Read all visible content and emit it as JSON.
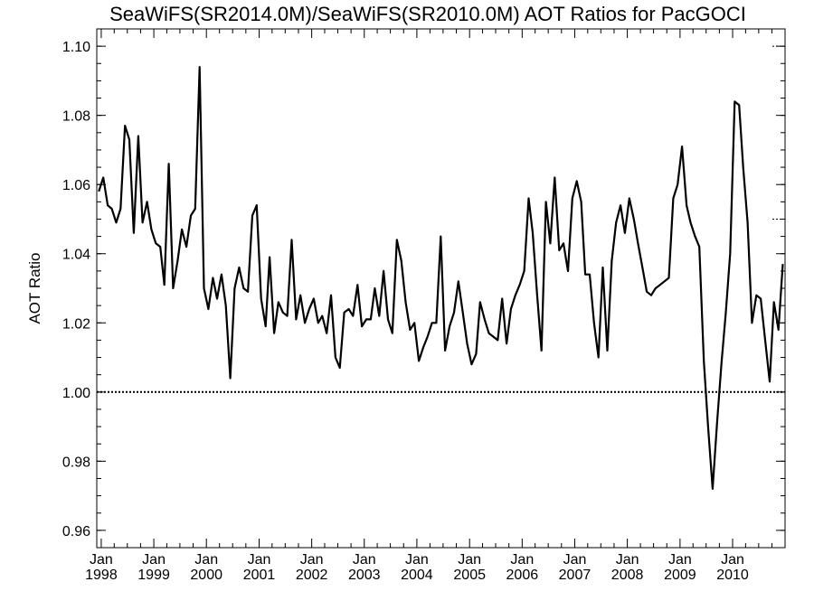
{
  "chart_data": {
    "type": "line",
    "title": "SeaWiFS(SR2014.0M)/SeaWiFS(SR2010.0M)  AOT Ratios for PacGOCI",
    "xlabel": "",
    "ylabel": "AOT Ratio",
    "ylim": [
      0.955,
      1.105
    ],
    "yticks": [
      "0.96",
      "0.98",
      "1.00",
      "1.02",
      "1.04",
      "1.06",
      "1.08",
      "1.10"
    ],
    "xlim": [
      "1997-12-01",
      "2010-12-31"
    ],
    "xticks": [
      {
        "month": "Jan",
        "year": "1998",
        "date": "1998-01-01"
      },
      {
        "month": "Jan",
        "year": "1999",
        "date": "1999-01-01"
      },
      {
        "month": "Jan",
        "year": "2000",
        "date": "2000-01-01"
      },
      {
        "month": "Jan",
        "year": "2001",
        "date": "2001-01-01"
      },
      {
        "month": "Jan",
        "year": "2002",
        "date": "2002-01-01"
      },
      {
        "month": "Jan",
        "year": "2003",
        "date": "2003-01-01"
      },
      {
        "month": "Jan",
        "year": "2004",
        "date": "2004-01-01"
      },
      {
        "month": "Jan",
        "year": "2005",
        "date": "2005-01-01"
      },
      {
        "month": "Jan",
        "year": "2006",
        "date": "2006-01-01"
      },
      {
        "month": "Jan",
        "year": "2007",
        "date": "2007-01-01"
      },
      {
        "month": "Jan",
        "year": "2008",
        "date": "2008-01-01"
      },
      {
        "month": "Jan",
        "year": "2009",
        "date": "2009-01-01"
      },
      {
        "month": "Jan",
        "year": "2010",
        "date": "2010-01-01"
      }
    ],
    "reference_line": {
      "y": 1.0,
      "style": "dotted"
    },
    "right_axis_marks": [
      1.1,
      1.05
    ],
    "grid": false,
    "series": [
      {
        "x": [
          "1997-12",
          "1998-01",
          "1998-02",
          "1998-03",
          "1998-04",
          "1998-05",
          "1998-06",
          "1998-07",
          "1998-08",
          "1998-09",
          "1998-10",
          "1998-11",
          "1998-12",
          "1999-01",
          "1999-02",
          "1999-03",
          "1999-04",
          "1999-05",
          "1999-06",
          "1999-07",
          "1999-08",
          "1999-09",
          "1999-10",
          "1999-11",
          "1999-12",
          "2000-01",
          "2000-02",
          "2000-03",
          "2000-04",
          "2000-05",
          "2000-06",
          "2000-07",
          "2000-08",
          "2000-09",
          "2000-10",
          "2000-11",
          "2000-12",
          "2001-01",
          "2001-02",
          "2001-03",
          "2001-04",
          "2001-05",
          "2001-06",
          "2001-07",
          "2001-08",
          "2001-09",
          "2001-10",
          "2001-11",
          "2001-12",
          "2002-01",
          "2002-02",
          "2002-03",
          "2002-04",
          "2002-05",
          "2002-06",
          "2002-07",
          "2002-08",
          "2002-09",
          "2002-10",
          "2002-11",
          "2002-12",
          "2003-01",
          "2003-02",
          "2003-03",
          "2003-04",
          "2003-05",
          "2003-06",
          "2003-07",
          "2003-08",
          "2003-09",
          "2003-10",
          "2003-11",
          "2003-12",
          "2004-01",
          "2004-02",
          "2004-03",
          "2004-04",
          "2004-05",
          "2004-06",
          "2004-07",
          "2004-08",
          "2004-09",
          "2004-10",
          "2004-11",
          "2004-12",
          "2005-01",
          "2005-02",
          "2005-03",
          "2005-04",
          "2005-05",
          "2005-06",
          "2005-07",
          "2005-08",
          "2005-09",
          "2005-10",
          "2005-11",
          "2005-12",
          "2006-01",
          "2006-02",
          "2006-03",
          "2006-04",
          "2006-05",
          "2006-06",
          "2006-07",
          "2006-08",
          "2006-09",
          "2006-10",
          "2006-11",
          "2006-12",
          "2007-01",
          "2007-02",
          "2007-03",
          "2007-04",
          "2007-05",
          "2007-06",
          "2007-07",
          "2007-08",
          "2007-09",
          "2007-10",
          "2007-11",
          "2007-12",
          "2008-01",
          "2008-02",
          "2008-03",
          "2008-04",
          "2008-05",
          "2008-06",
          "2008-07",
          "2008-08",
          "2008-09",
          "2008-10",
          "2008-11",
          "2008-12",
          "2009-01",
          "2009-02",
          "2009-03",
          "2009-04",
          "2009-05",
          "2009-06",
          "2009-07",
          "2009-08",
          "2009-09",
          "2009-10",
          "2009-11",
          "2009-12",
          "2010-01",
          "2010-02",
          "2010-03",
          "2010-04",
          "2010-05",
          "2010-06",
          "2010-07",
          "2010-08",
          "2010-09",
          "2010-10",
          "2010-11",
          "2010-12"
        ],
        "y": [
          1.058,
          1.062,
          1.054,
          1.053,
          1.049,
          1.053,
          1.077,
          1.073,
          1.046,
          1.074,
          1.049,
          1.055,
          1.047,
          1.043,
          1.042,
          1.031,
          1.066,
          1.03,
          1.038,
          1.047,
          1.042,
          1.051,
          1.053,
          1.094,
          1.03,
          1.024,
          1.033,
          1.027,
          1.034,
          1.025,
          1.004,
          1.03,
          1.036,
          1.03,
          1.029,
          1.051,
          1.054,
          1.027,
          1.019,
          1.039,
          1.017,
          1.026,
          1.023,
          1.022,
          1.044,
          1.021,
          1.028,
          1.02,
          1.024,
          1.027,
          1.02,
          1.022,
          1.017,
          1.028,
          1.01,
          1.007,
          1.023,
          1.024,
          1.022,
          1.031,
          1.019,
          1.021,
          1.021,
          1.03,
          1.022,
          1.035,
          1.021,
          1.017,
          1.044,
          1.038,
          1.026,
          1.018,
          1.02,
          1.009,
          1.013,
          1.016,
          1.02,
          1.02,
          1.045,
          1.012,
          1.019,
          1.023,
          1.032,
          1.023,
          1.014,
          1.008,
          1.011,
          1.026,
          1.021,
          1.017,
          1.016,
          1.015,
          1.027,
          1.014,
          1.024,
          1.028,
          1.031,
          1.035,
          1.056,
          1.046,
          1.028,
          1.012,
          1.055,
          1.043,
          1.062,
          1.041,
          1.043,
          1.035,
          1.056,
          1.061,
          1.055,
          1.034,
          1.034,
          1.02,
          1.01,
          1.036,
          1.012,
          1.038,
          1.049,
          1.054,
          1.046,
          1.056,
          1.05,
          1.043,
          1.036,
          1.029,
          1.028,
          1.03,
          1.031,
          1.032,
          1.033,
          1.056,
          1.06,
          1.071,
          1.054,
          1.049,
          1.045,
          1.042,
          1.009,
          0.99,
          0.972,
          0.991,
          1.008,
          1.023,
          1.04,
          1.084,
          1.083,
          1.065,
          1.049,
          1.02,
          1.028,
          1.027,
          1.015,
          1.003,
          1.026,
          1.018,
          1.037
        ]
      }
    ]
  }
}
